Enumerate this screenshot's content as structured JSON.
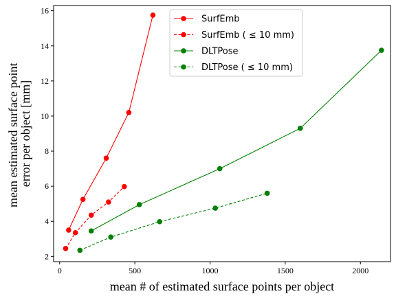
{
  "chart_data": {
    "type": "line",
    "xlabel": "mean # of estimated surface points per object",
    "ylabel_lines": [
      "mean estimated surface point",
      "error per object [mm]"
    ],
    "xlim": [
      -40,
      2200
    ],
    "ylim": [
      1.7,
      16.3
    ],
    "xticks": [
      0,
      500,
      1000,
      1500,
      2000
    ],
    "yticks": [
      2,
      4,
      6,
      8,
      10,
      12,
      14,
      16
    ],
    "legend_position": "top-center",
    "grid": false,
    "series": [
      {
        "name": "SurfEmb",
        "color": "#ff0000",
        "dashed": false,
        "points": [
          [
            60,
            3.5
          ],
          [
            155,
            5.25
          ],
          [
            310,
            7.6
          ],
          [
            460,
            10.2
          ],
          [
            620,
            15.75
          ]
        ]
      },
      {
        "name": "SurfEmb ( ≤ 10 mm)",
        "color": "#ff0000",
        "dashed": true,
        "points": [
          [
            40,
            2.45
          ],
          [
            105,
            3.35
          ],
          [
            210,
            4.35
          ],
          [
            325,
            5.1
          ],
          [
            430,
            5.98
          ]
        ]
      },
      {
        "name": "DLTPose",
        "color": "#008000",
        "dashed": false,
        "points": [
          [
            210,
            3.45
          ],
          [
            530,
            4.95
          ],
          [
            1065,
            7.0
          ],
          [
            1600,
            9.3
          ],
          [
            2140,
            13.75
          ]
        ]
      },
      {
        "name": "DLTPose ( ≤ 10 mm)",
        "color": "#008000",
        "dashed": true,
        "points": [
          [
            135,
            2.35
          ],
          [
            340,
            3.1
          ],
          [
            665,
            3.98
          ],
          [
            1035,
            4.75
          ],
          [
            1380,
            5.6
          ]
        ]
      }
    ]
  }
}
